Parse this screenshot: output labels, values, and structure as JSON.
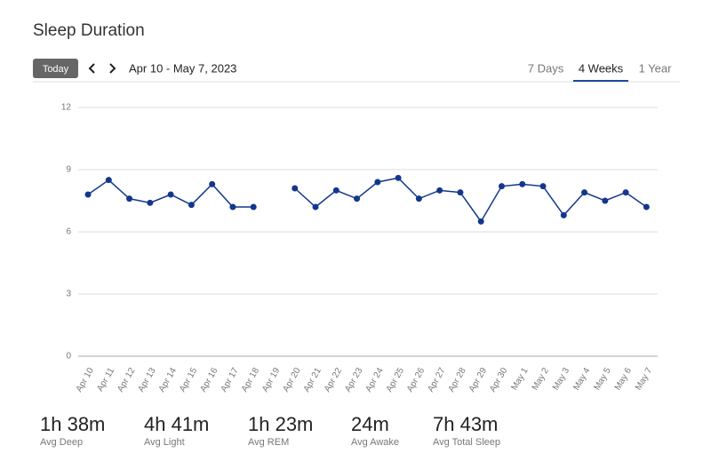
{
  "header": {
    "title": "Sleep Duration",
    "today_button": "Today",
    "date_range": "Apr 10 - May 7, 2023",
    "tabs": [
      "7 Days",
      "4 Weeks",
      "1 Year"
    ]
  },
  "chart_data": {
    "type": "line",
    "categories": [
      "Apr 10",
      "Apr 11",
      "Apr 12",
      "Apr 13",
      "Apr 14",
      "Apr 15",
      "Apr 16",
      "Apr 17",
      "Apr 18",
      "Apr 19",
      "Apr 20",
      "Apr 21",
      "Apr 22",
      "Apr 23",
      "Apr 24",
      "Apr 25",
      "Apr 26",
      "Apr 27",
      "Apr 28",
      "Apr 29",
      "Apr 30",
      "May 1",
      "May 2",
      "May 3",
      "May 4",
      "May 5",
      "May 6",
      "May 7"
    ],
    "values": [
      7.8,
      8.5,
      7.6,
      7.4,
      7.8,
      7.3,
      8.3,
      7.2,
      7.2,
      null,
      8.1,
      7.2,
      8.0,
      7.6,
      8.4,
      8.6,
      7.6,
      8.0,
      7.9,
      6.5,
      8.2,
      8.3,
      8.2,
      6.8,
      7.9,
      7.5,
      7.9,
      7.2
    ],
    "color": "#12378c",
    "ylim": [
      0,
      12
    ],
    "yticks": [
      0,
      3,
      6,
      9,
      12
    ],
    "grid": true
  },
  "stats": [
    {
      "value": "1h 38m",
      "label": "Avg Deep"
    },
    {
      "value": "4h 41m",
      "label": "Avg Light"
    },
    {
      "value": "1h 23m",
      "label": "Avg REM"
    },
    {
      "value": "24m",
      "label": "Avg Awake"
    },
    {
      "value": "7h 43m",
      "label": "Avg Total Sleep"
    }
  ]
}
